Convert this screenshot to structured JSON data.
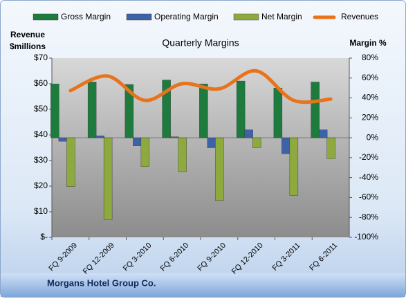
{
  "chart_data": {
    "type": "bar_line",
    "title": "Quarterly Margins",
    "y_label": [
      "Revenue",
      "$millions"
    ],
    "y2_label": "Margin %",
    "footer": "Morgans Hotel Group Co.",
    "categories": [
      "FQ 9-2009",
      "FQ 12-2009",
      "FQ 3-2010",
      "FQ 6-2010",
      "FQ 9-2010",
      "FQ 12-2010",
      "FQ 3-2011",
      "FQ 6-2011"
    ],
    "series": [
      {
        "name": "Gross Margin",
        "color": "#1e7b3e",
        "axis": "y2",
        "kind": "bar",
        "values": [
          54,
          56,
          53.5,
          58,
          54,
          57,
          50,
          56
        ]
      },
      {
        "name": "Operating Margin",
        "color": "#3d63a6",
        "axis": "y2",
        "kind": "bar",
        "values": [
          -3.5,
          2,
          -8,
          1,
          -10,
          8,
          -16,
          8
        ]
      },
      {
        "name": "Net Margin",
        "color": "#8eaa3e",
        "axis": "y2",
        "kind": "bar",
        "values": [
          -49,
          -82,
          -29,
          -34,
          -63,
          -10,
          -58,
          -21
        ]
      },
      {
        "name": "Revenues",
        "color": "#e8731c",
        "axis": "y",
        "kind": "line",
        "values": [
          57.3,
          63,
          53.5,
          60,
          58,
          65,
          53.5,
          54
        ]
      }
    ],
    "ylim": [
      0,
      70
    ],
    "yticks": [
      {
        "value": 0,
        "label": "$-"
      },
      {
        "value": 10,
        "label": "$10"
      },
      {
        "value": 20,
        "label": "$20"
      },
      {
        "value": 30,
        "label": "$30"
      },
      {
        "value": 40,
        "label": "$40"
      },
      {
        "value": 50,
        "label": "$50"
      },
      {
        "value": 60,
        "label": "$60"
      },
      {
        "value": 70,
        "label": "$70"
      }
    ],
    "y2lim": [
      -100,
      80
    ],
    "y2ticks": [
      {
        "value": -100,
        "label": "-100%"
      },
      {
        "value": -80,
        "label": "-80%"
      },
      {
        "value": -60,
        "label": "-60%"
      },
      {
        "value": -40,
        "label": "-40%"
      },
      {
        "value": -20,
        "label": "-20%"
      },
      {
        "value": 0,
        "label": "0%"
      },
      {
        "value": 20,
        "label": "20%"
      },
      {
        "value": 40,
        "label": "40%"
      },
      {
        "value": 60,
        "label": "60%"
      },
      {
        "value": 80,
        "label": "80%"
      }
    ],
    "legend": "top"
  }
}
